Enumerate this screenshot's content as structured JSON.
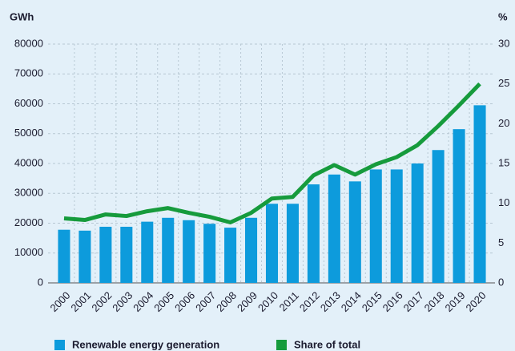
{
  "chart_data": {
    "type": "bar-line",
    "y_label": "GWh",
    "y2_label": "%",
    "categories": [
      "2000",
      "2001",
      "2002",
      "2003",
      "2004",
      "2005",
      "2006",
      "2007",
      "2008",
      "2009",
      "2010",
      "2011",
      "2012",
      "2013",
      "2014",
      "2015",
      "2016",
      "2017",
      "2018",
      "2019",
      "2020"
    ],
    "series": [
      {
        "name": "Renewable energy generation",
        "type": "bar",
        "color": "#0d9bdc",
        "values": [
          17800,
          17500,
          18800,
          18800,
          20500,
          21800,
          21000,
          19800,
          18500,
          21800,
          26500,
          26500,
          33000,
          36300,
          34000,
          38000,
          38000,
          40000,
          44500,
          51500,
          59500
        ]
      },
      {
        "name": "Share of total",
        "type": "line",
        "axis": "y2",
        "color": "#169b3c",
        "values": [
          8.1,
          7.9,
          8.6,
          8.4,
          9.0,
          9.4,
          8.8,
          8.3,
          7.6,
          8.8,
          10.6,
          10.8,
          13.5,
          14.8,
          13.6,
          14.9,
          15.8,
          17.3,
          19.7,
          22.3,
          25.0
        ]
      }
    ],
    "ylim": [
      0,
      80000
    ],
    "yticks": [
      0,
      10000,
      20000,
      30000,
      40000,
      50000,
      60000,
      70000,
      80000
    ],
    "y2lim": [
      0,
      30
    ],
    "y2ticks": [
      0,
      5,
      10,
      15,
      20,
      25,
      30
    ],
    "grid": true
  }
}
